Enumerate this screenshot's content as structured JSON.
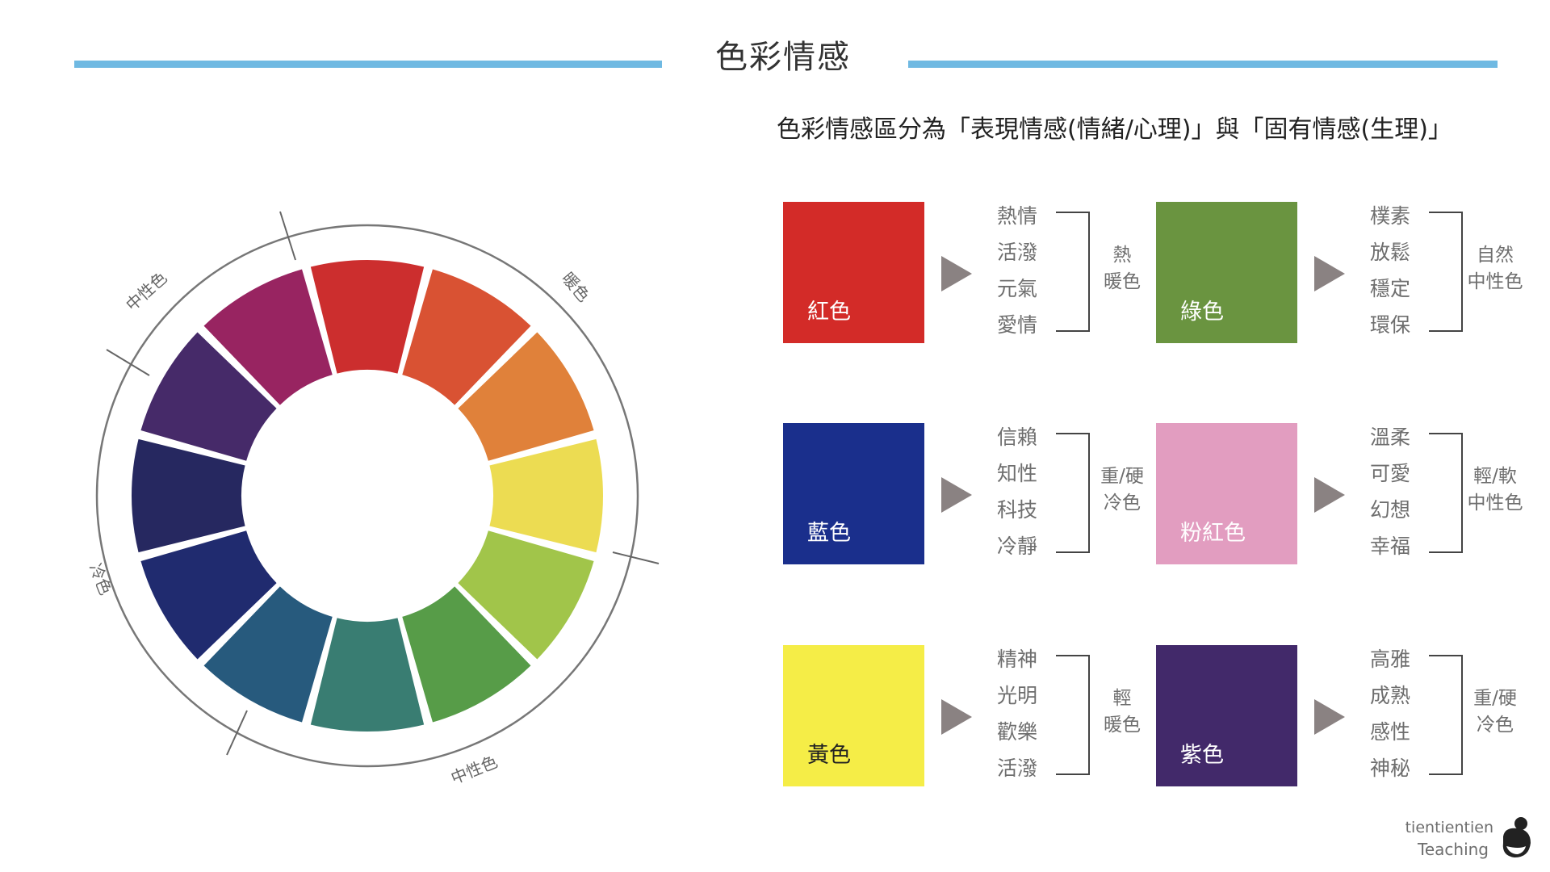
{
  "title": "色彩情感",
  "subtitle": "色彩情感區分為「表現情感(情緒/心理)」與「固有情感(生理)」",
  "wheel": {
    "segments": [
      "#cc2e2e",
      "#d95233",
      "#e0813a",
      "#ecdc52",
      "#a1c54a",
      "#579c48",
      "#397d72",
      "#275a7d",
      "#202b6f",
      "#262860",
      "#462a69",
      "#982461"
    ],
    "labels": [
      {
        "text": "暖色"
      },
      {
        "text": "中性色"
      },
      {
        "text": "冷色"
      },
      {
        "text": "中性色"
      }
    ]
  },
  "cards": [
    {
      "name": "紅色",
      "color": "#d32b28",
      "feelings": [
        "熱情",
        "活潑",
        "元氣",
        "愛情"
      ],
      "category": [
        "熱",
        "暖色"
      ]
    },
    {
      "name": "綠色",
      "color": "#6a9440",
      "feelings": [
        "樸素",
        "放鬆",
        "穩定",
        "環保"
      ],
      "category": [
        "自然",
        "中性色"
      ]
    },
    {
      "name": "藍色",
      "color": "#1a2f8c",
      "feelings": [
        "信賴",
        "知性",
        "科技",
        "冷靜"
      ],
      "category": [
        "重/硬",
        "冷色"
      ]
    },
    {
      "name": "粉紅色",
      "color": "#e29dc0",
      "feelings": [
        "溫柔",
        "可愛",
        "幻想",
        "幸福"
      ],
      "category": [
        "輕/軟",
        "中性色"
      ]
    },
    {
      "name": "黃色",
      "color": "#f5ed47",
      "feelings": [
        "精神",
        "光明",
        "歡樂",
        "活潑"
      ],
      "category": [
        "輕",
        "暖色"
      ]
    },
    {
      "name": "紫色",
      "color": "#42296a",
      "feelings": [
        "高雅",
        "成熟",
        "感性",
        "神秘"
      ],
      "category": [
        "重/硬",
        "冷色"
      ]
    }
  ],
  "footer": {
    "name": "tientientien",
    "sub": "Teaching"
  }
}
